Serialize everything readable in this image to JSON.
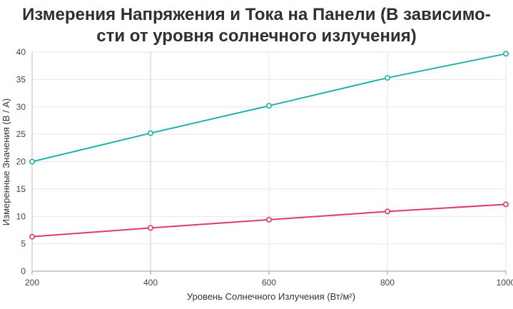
{
  "chart_data": {
    "type": "line",
    "title_lines": [
      "Измерения Напряжения и Тока на Панели (В зависимо-",
      "сти от уровня солнечного излучения)"
    ],
    "xlabel": "Уровень Солнечного Излучения (Вт/м²)",
    "ylabel": "Измеренные Значения (В / А)",
    "x": [
      200,
      400,
      600,
      800,
      1000
    ],
    "xlim": [
      200,
      1000
    ],
    "ylim": [
      0,
      40
    ],
    "x_ticks": [
      "200",
      "400",
      "600",
      "800",
      "1000"
    ],
    "y_ticks": [
      "0",
      "5",
      "10",
      "15",
      "20",
      "25",
      "30",
      "35",
      "40"
    ],
    "grid": true,
    "legend": "none",
    "series": [
      {
        "color": "#20b2aa",
        "values": [
          20,
          25.2,
          30.2,
          35.3,
          39.7
        ]
      },
      {
        "color": "#dc3c64",
        "values": [
          6.3,
          7.9,
          9.4,
          10.9,
          12.2
        ]
      }
    ]
  }
}
